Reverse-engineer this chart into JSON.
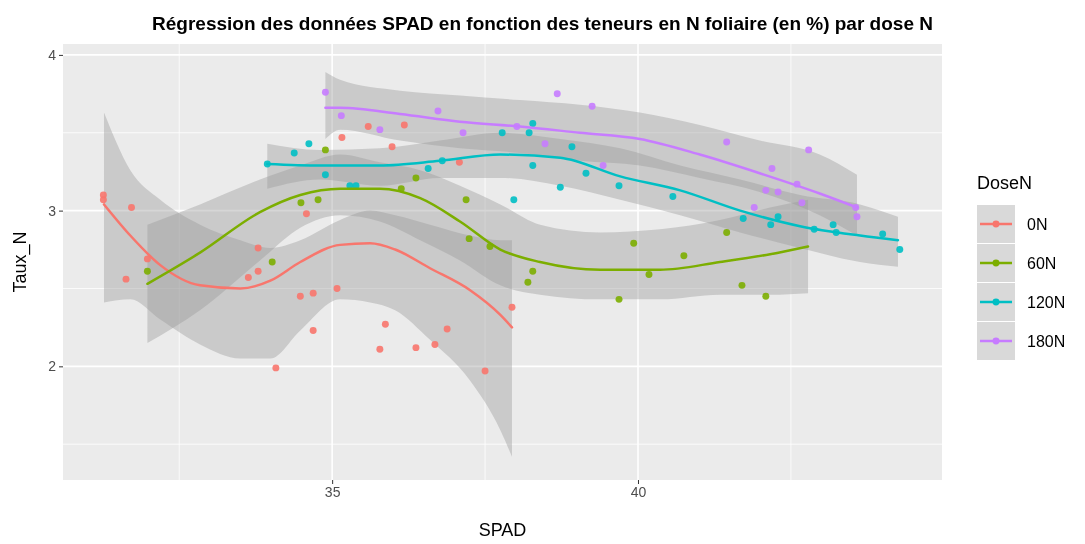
{
  "chart_data": {
    "type": "scatter",
    "title": "Régression des données SPAD en fonction des teneurs en N foliaire (en %) par dose N",
    "xlabel": "SPAD",
    "ylabel": "Taux_N",
    "legend_title": "DoseN",
    "legend": "right",
    "grid": true,
    "marker": "circle",
    "xlim": [
      30.6,
      44.97
    ],
    "xticks": [
      35,
      40
    ],
    "ylim": [
      1.27,
      4.07
    ],
    "yticks": [
      2,
      3,
      4
    ],
    "series": [
      {
        "name": "0N",
        "color": "#f8766d",
        "x": [
          31.26,
          31.26,
          31.72,
          31.63,
          31.98,
          33.63,
          33.79,
          33.79,
          34.58,
          34.08,
          34.48,
          34.69,
          35.08,
          34.69,
          35.16,
          35.59,
          36.18,
          35.98,
          37.08,
          35.87,
          35.78,
          36.37,
          36.68,
          36.88,
          37.5,
          37.94
        ],
        "values": [
          3.1,
          3.07,
          3.02,
          2.56,
          2.69,
          2.57,
          2.61,
          2.76,
          2.98,
          1.99,
          2.45,
          2.47,
          2.5,
          2.23,
          3.47,
          3.54,
          3.55,
          3.41,
          3.31,
          2.27,
          2.11,
          2.12,
          2.14,
          2.24,
          1.97,
          2.38
        ]
      },
      {
        "name": "60N",
        "color": "#7cae00",
        "x": [
          31.98,
          34.02,
          34.49,
          34.77,
          34.89,
          36.13,
          36.37,
          37.19,
          37.24,
          37.58,
          38.2,
          38.28,
          39.69,
          39.93,
          40.18,
          40.75,
          41.45,
          41.7,
          42.09
        ],
        "values": [
          2.61,
          2.67,
          3.05,
          3.07,
          3.39,
          3.14,
          3.21,
          3.07,
          2.82,
          2.77,
          2.54,
          2.61,
          2.43,
          2.79,
          2.59,
          2.71,
          2.86,
          2.52,
          2.45
        ]
      },
      {
        "name": "120N",
        "color": "#00bfc4",
        "x": [
          33.94,
          34.38,
          34.62,
          34.89,
          35.29,
          35.39,
          36.57,
          36.8,
          37.78,
          38.22,
          38.28,
          38.28,
          37.97,
          38.73,
          38.92,
          39.15,
          39.69,
          40.57,
          41.72,
          42.17,
          42.29,
          42.88,
          43.19,
          43.24,
          44.0,
          44.28
        ],
        "values": [
          3.3,
          3.37,
          3.43,
          3.23,
          3.16,
          3.16,
          3.27,
          3.32,
          3.5,
          3.5,
          3.56,
          3.29,
          3.07,
          3.15,
          3.41,
          3.24,
          3.16,
          3.09,
          2.95,
          2.91,
          2.96,
          2.88,
          2.91,
          2.86,
          2.85,
          2.75
        ]
      },
      {
        "name": "180N",
        "color": "#c77cff",
        "x": [
          34.89,
          35.15,
          35.78,
          36.73,
          37.14,
          38.02,
          38.48,
          38.68,
          39.25,
          39.43,
          41.45,
          42.19,
          42.09,
          42.29,
          42.6,
          42.68,
          41.9,
          42.79,
          43.56,
          43.58
        ],
        "values": [
          3.76,
          3.61,
          3.52,
          3.64,
          3.5,
          3.54,
          3.43,
          3.75,
          3.67,
          3.29,
          3.44,
          3.27,
          3.13,
          3.12,
          3.17,
          3.05,
          3.02,
          3.39,
          3.02,
          2.96
        ]
      },
      {
        "type": "line",
        "marker": "none",
        "color": "#f8766d",
        "x": [
          31.27,
          31.7,
          32.19,
          32.84,
          33.5,
          33.99,
          34.48,
          35.13,
          35.62,
          36.03,
          36.6,
          37.25,
          37.75,
          37.94
        ],
        "values": [
          3.04,
          2.84,
          2.65,
          2.52,
          2.5,
          2.55,
          2.67,
          2.78,
          2.79,
          2.75,
          2.63,
          2.49,
          2.33,
          2.25
        ],
        "upper": [
          3.63,
          3.26,
          3.07,
          2.91,
          2.81,
          2.76,
          2.81,
          2.94,
          3.0,
          2.97,
          2.91,
          2.84,
          2.81,
          2.81
        ],
        "lower": [
          2.41,
          2.43,
          2.3,
          2.14,
          2.05,
          2.05,
          2.23,
          2.43,
          2.41,
          2.36,
          2.17,
          1.91,
          1.59,
          1.42
        ]
      },
      {
        "type": "line",
        "marker": "none",
        "color": "#7cae00",
        "x": [
          31.98,
          32.84,
          33.82,
          34.48,
          35.13,
          35.78,
          36.44,
          37.09,
          37.75,
          38.4,
          39.38,
          40.36,
          41.34,
          42.16,
          42.78
        ],
        "values": [
          2.53,
          2.73,
          2.99,
          3.1,
          3.14,
          3.14,
          3.08,
          2.93,
          2.75,
          2.67,
          2.62,
          2.62,
          2.67,
          2.72,
          2.77
        ],
        "upper": [
          2.91,
          3.04,
          3.2,
          3.29,
          3.36,
          3.31,
          3.26,
          3.16,
          3.04,
          2.91,
          2.86,
          2.88,
          2.94,
          3.02,
          3.07
        ],
        "lower": [
          2.15,
          2.36,
          2.68,
          2.89,
          2.97,
          2.93,
          2.81,
          2.68,
          2.52,
          2.46,
          2.43,
          2.43,
          2.46,
          2.46,
          2.47
        ]
      },
      {
        "type": "line",
        "marker": "none",
        "color": "#00bfc4",
        "x": [
          33.94,
          34.8,
          35.78,
          36.76,
          37.75,
          38.73,
          39.71,
          40.69,
          41.67,
          42.65,
          43.63,
          44.25
        ],
        "values": [
          3.3,
          3.29,
          3.29,
          3.32,
          3.36,
          3.34,
          3.22,
          3.13,
          3.0,
          2.9,
          2.84,
          2.81
        ],
        "upper": [
          3.43,
          3.39,
          3.4,
          3.45,
          3.5,
          3.46,
          3.4,
          3.29,
          3.2,
          3.1,
          3.04,
          2.96
        ],
        "lower": [
          3.14,
          3.2,
          3.16,
          3.21,
          3.21,
          3.16,
          3.07,
          2.97,
          2.86,
          2.76,
          2.67,
          2.64
        ]
      },
      {
        "type": "line",
        "marker": "none",
        "color": "#c77cff",
        "x": [
          34.89,
          35.13,
          36.11,
          37.09,
          38.07,
          39.05,
          40.03,
          41.01,
          41.99,
          42.97,
          43.58
        ],
        "values": [
          3.66,
          3.66,
          3.62,
          3.57,
          3.54,
          3.5,
          3.46,
          3.36,
          3.24,
          3.11,
          3.02
        ],
        "upper": [
          3.89,
          3.84,
          3.77,
          3.74,
          3.71,
          3.68,
          3.63,
          3.55,
          3.45,
          3.36,
          3.23
        ],
        "lower": [
          3.46,
          3.52,
          3.45,
          3.4,
          3.37,
          3.32,
          3.29,
          3.21,
          3.12,
          2.97,
          2.84
        ]
      }
    ]
  }
}
